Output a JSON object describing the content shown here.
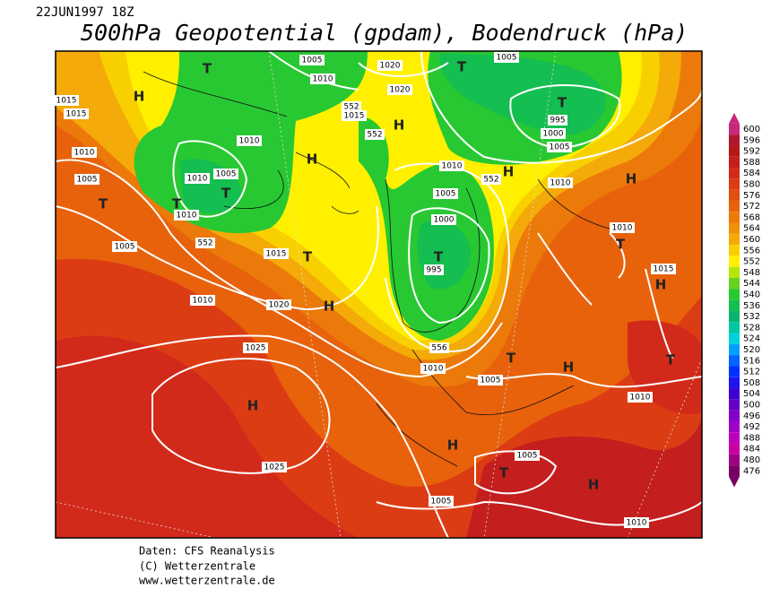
{
  "header": {
    "date": "22JUN1997 18Z",
    "title": "500hPa Geopotential (gpdam), Bodendruck (hPa)"
  },
  "map": {
    "centers": [
      "T",
      "T",
      "T",
      "H",
      "H",
      "T",
      "T",
      "H",
      "T",
      "H",
      "H",
      "T",
      "T",
      "T",
      "H",
      "H",
      "T",
      "H",
      "T",
      "H",
      "H",
      "T",
      "H"
    ],
    "contour_labels": [
      1005,
      1010,
      1020,
      1005,
      1020,
      1015,
      1015,
      1015,
      552,
      552,
      995,
      1000,
      1005,
      1010,
      1010,
      1005,
      1005,
      1010,
      1010,
      1005,
      552,
      1010,
      552,
      1010,
      1005,
      1000,
      995,
      1015,
      1010,
      1015,
      1010,
      1020,
      556,
      1010,
      1025,
      1005,
      1010,
      1025,
      1005,
      1005,
      1010
    ]
  },
  "colorbar": {
    "labels": [
      600,
      596,
      592,
      588,
      584,
      580,
      576,
      572,
      568,
      564,
      560,
      556,
      552,
      548,
      544,
      540,
      536,
      532,
      528,
      524,
      520,
      516,
      512,
      508,
      504,
      500,
      496,
      492,
      488,
      484,
      480,
      476
    ],
    "colors": [
      "#c8287a",
      "#b01830",
      "#b41818",
      "#c41e1e",
      "#d22a1a",
      "#dc3c14",
      "#e04e10",
      "#e8620c",
      "#ec7a0a",
      "#f09008",
      "#f4aa08",
      "#f8d000",
      "#fff000",
      "#b4e60a",
      "#64d21e",
      "#28c832",
      "#14be50",
      "#0ab46e",
      "#00c8a0",
      "#00d2dc",
      "#00a0ff",
      "#0064ff",
      "#0032ff",
      "#1e14f0",
      "#3c00d2",
      "#6400c8",
      "#8200c8",
      "#a000c8",
      "#be00be",
      "#c800a0",
      "#a00082",
      "#780064"
    ]
  },
  "footer": {
    "source": "Daten: CFS Reanalysis",
    "copyright": "(C) Wetterzentrale",
    "url": "www.wetterzentrale.de"
  }
}
